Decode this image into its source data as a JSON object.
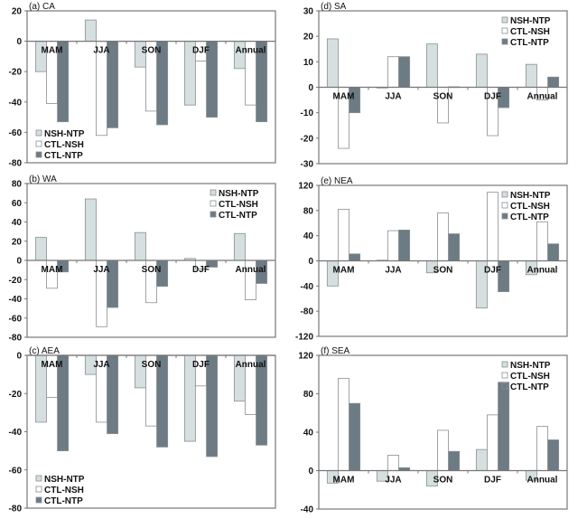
{
  "chart_data": [
    {
      "type": "bar",
      "title": "(a) CA",
      "categories": [
        "MAM",
        "JJA",
        "SON",
        "DJF",
        "Annual"
      ],
      "ylim": [
        -80,
        20
      ],
      "yticks": [
        20,
        0,
        -20,
        -40,
        -60,
        -80
      ],
      "legend": "bottom-left",
      "series": [
        {
          "name": "NSH-NTP",
          "values": [
            -20,
            14,
            -17,
            -42,
            -18
          ]
        },
        {
          "name": "CTL-NSH",
          "values": [
            -41,
            -62,
            -46,
            -13,
            -42
          ]
        },
        {
          "name": "CTL-NTP",
          "values": [
            -53,
            -57,
            -55,
            -50,
            -53
          ]
        }
      ]
    },
    {
      "type": "bar",
      "title": "(b) WA",
      "categories": [
        "MAM",
        "JJA",
        "SON",
        "DJF",
        "Annual"
      ],
      "ylim": [
        -80,
        80
      ],
      "yticks": [
        80,
        60,
        40,
        20,
        0,
        -20,
        -40,
        -60,
        -80
      ],
      "legend": "top-right",
      "series": [
        {
          "name": "NSH-NTP",
          "values": [
            24,
            64,
            29,
            2,
            28
          ]
        },
        {
          "name": "CTL-NSH",
          "values": [
            -29,
            -69,
            -44,
            -9,
            -41
          ]
        },
        {
          "name": "CTL-NTP",
          "values": [
            -12,
            -49,
            -27,
            -7,
            -24
          ]
        }
      ]
    },
    {
      "type": "bar",
      "title": "(c) AEA",
      "categories": [
        "MAM",
        "JJA",
        "SON",
        "DJF",
        "Annual"
      ],
      "ylim": [
        -80,
        0
      ],
      "yticks": [
        0,
        -20,
        -40,
        -60,
        -80
      ],
      "legend": "bottom-left",
      "series": [
        {
          "name": "NSH-NTP",
          "values": [
            -35,
            -10,
            -17,
            -45,
            -24
          ]
        },
        {
          "name": "CTL-NSH",
          "values": [
            -22,
            -35,
            -37,
            -16,
            -31
          ]
        },
        {
          "name": "CTL-NTP",
          "values": [
            -50,
            -41,
            -48,
            -53,
            -47
          ]
        }
      ]
    },
    {
      "type": "bar",
      "title": "(d) SA",
      "categories": [
        "MAM",
        "JJA",
        "SON",
        "DJF",
        "Annual"
      ],
      "ylim": [
        -30,
        30
      ],
      "yticks": [
        30,
        20,
        10,
        0,
        -10,
        -20,
        -30
      ],
      "legend": "top-right",
      "series": [
        {
          "name": "NSH-NTP",
          "values": [
            19,
            -0.2,
            17,
            13,
            9
          ]
        },
        {
          "name": "CTL-NSH",
          "values": [
            -24,
            12,
            -14,
            -19,
            -5
          ]
        },
        {
          "name": "CTL-NTP",
          "values": [
            -10,
            12,
            0.2,
            -8,
            4
          ]
        }
      ]
    },
    {
      "type": "bar",
      "title": "(e) NEA",
      "categories": [
        "MAM",
        "JJA",
        "SON",
        "DJF",
        "Annual"
      ],
      "ylim": [
        -120,
        120
      ],
      "yticks": [
        120,
        80,
        40,
        0,
        -40,
        -80,
        -120
      ],
      "legend": "top-right",
      "series": [
        {
          "name": "NSH-NTP",
          "values": [
            -40,
            1,
            -19,
            -75,
            -22
          ]
        },
        {
          "name": "CTL-NSH",
          "values": [
            82,
            48,
            76,
            109,
            62
          ]
        },
        {
          "name": "CTL-NTP",
          "values": [
            11,
            49,
            43,
            -49,
            27
          ]
        }
      ]
    },
    {
      "type": "bar",
      "title": "(f) SEA",
      "categories": [
        "MAM",
        "JJA",
        "SON",
        "DJF",
        "Annual"
      ],
      "ylim": [
        -40,
        120
      ],
      "yticks": [
        120,
        80,
        40,
        0,
        -40
      ],
      "legend": "top-right",
      "series": [
        {
          "name": "NSH-NTP",
          "values": [
            -13,
            -11,
            -16,
            22,
            -10
          ]
        },
        {
          "name": "CTL-NSH",
          "values": [
            96,
            16,
            42,
            58,
            46
          ]
        },
        {
          "name": "CTL-NTP",
          "values": [
            70,
            3,
            20,
            92,
            32
          ]
        }
      ]
    }
  ],
  "colors": {
    "NSH-NTP": "#d5dfdf",
    "CTL-NSH": "#ffffff",
    "CTL-NTP": "#6c7b84",
    "bar_stroke": "#8a8f93",
    "axis": "#777777"
  }
}
